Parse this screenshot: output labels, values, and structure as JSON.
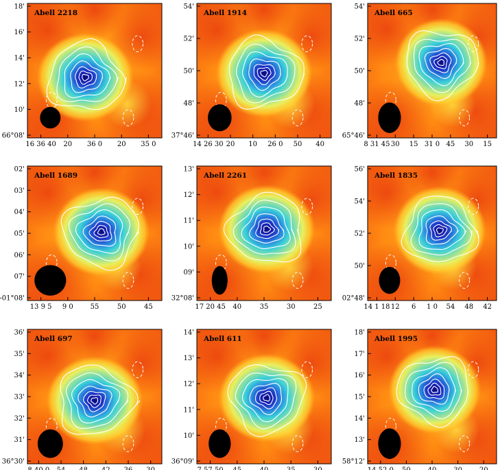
{
  "figure": {
    "panels": [
      {
        "title": "Abell 2218",
        "x_ticks": [
          "16 36 40",
          "20",
          "36 0",
          "20",
          "35 0"
        ],
        "y_ticks": [
          "18'",
          "16'",
          "14'",
          "12'",
          "10'",
          "66°08'"
        ],
        "peak": [
          0.43,
          0.55
        ],
        "beam": [
          0.13,
          0.12
        ]
      },
      {
        "title": "Abell 1914",
        "x_ticks": [
          "14 26 30",
          "20",
          "10",
          "26 0",
          "50",
          "40"
        ],
        "y_ticks": [
          "54'",
          "52'",
          "50'",
          "48'",
          "37°46'"
        ],
        "peak": [
          0.5,
          0.52
        ],
        "beam": [
          0.15,
          0.15
        ]
      },
      {
        "title": "Abell 665",
        "x_ticks": [
          "8 31 45",
          "30",
          "15",
          "31 0",
          "45",
          "30",
          "15"
        ],
        "y_ticks": [
          "54'",
          "52'",
          "50'",
          "48'",
          "65°46'"
        ],
        "peak": [
          0.57,
          0.44
        ],
        "beam": [
          0.15,
          0.17
        ]
      },
      {
        "title": "Abell 1689",
        "x_ticks": [
          "13 9 5",
          "9 0",
          "55",
          "50",
          "45"
        ],
        "y_ticks": [
          "02'",
          "03'",
          "04'",
          "05'",
          "06'",
          "07'",
          "-01°08'"
        ],
        "peak": [
          0.55,
          0.49
        ],
        "beam": [
          0.2,
          0.17
        ]
      },
      {
        "title": "Abell 2261",
        "x_ticks": [
          "17 20 45",
          "40",
          "35",
          "30",
          "25"
        ],
        "y_ticks": [
          "13'",
          "12'",
          "11'",
          "10'",
          "09'",
          "32°08'"
        ],
        "peak": [
          0.52,
          0.47
        ],
        "beam": [
          0.1,
          0.16
        ]
      },
      {
        "title": "Abell 1835",
        "x_ticks": [
          "14 1 18",
          "12",
          "6",
          "1 0",
          "54",
          "48",
          "42"
        ],
        "y_ticks": [
          "56'",
          "54'",
          "52'",
          "50'",
          "02°48'"
        ],
        "peak": [
          0.56,
          0.48
        ],
        "beam": [
          0.14,
          0.15
        ]
      },
      {
        "title": "Abell 697",
        "x_ticks": [
          "8 40 0",
          "54",
          "48",
          "42",
          "36",
          "30"
        ],
        "y_ticks": [
          "36'",
          "35'",
          "34'",
          "33'",
          "32'",
          "31'",
          "36°30'"
        ],
        "peak": [
          0.5,
          0.53
        ],
        "beam": [
          0.16,
          0.16
        ]
      },
      {
        "title": "Abell 611",
        "x_ticks": [
          "7 57 50",
          "45",
          "40",
          "35",
          "30"
        ],
        "y_ticks": [
          "14'",
          "13'",
          "12'",
          "11'",
          "10'",
          "36°09'"
        ],
        "peak": [
          0.52,
          0.51
        ],
        "beam": [
          0.14,
          0.16
        ]
      },
      {
        "title": "Abell 1995",
        "x_ticks": [
          "14 52 0",
          "50",
          "40",
          "30",
          "20"
        ],
        "y_ticks": [
          "18'",
          "17'",
          "16'",
          "15'",
          "14'",
          "13'",
          "58°12'"
        ],
        "peak": [
          0.52,
          0.45
        ],
        "beam": [
          0.15,
          0.17
        ]
      }
    ]
  }
}
